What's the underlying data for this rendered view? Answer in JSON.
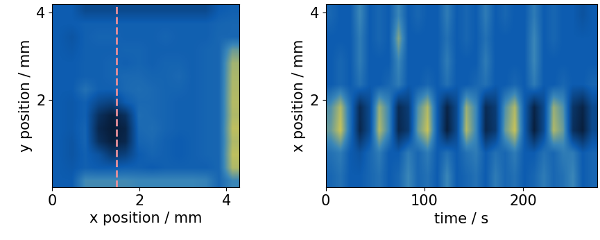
{
  "chart_data": [
    {
      "type": "heatmap",
      "xlabel": "x position / mm",
      "ylabel": "y position / mm",
      "xlim": [
        0,
        4.3
      ],
      "ylim": [
        0,
        4.2
      ],
      "xticks": [
        0,
        2,
        4
      ],
      "yticks": [
        2,
        4
      ],
      "zlim": [
        0,
        1
      ],
      "vline": {
        "x": 1.48,
        "color": "#e8909a",
        "line_style": "dashed"
      },
      "cells": [
        [
          0.4,
          0.4,
          0.62,
          0.62,
          0.62,
          0.62,
          0.6,
          0.6,
          0.6,
          0.6,
          0.6,
          0.58,
          0.45,
          0.6
        ],
        [
          0.4,
          0.38,
          0.42,
          0.4,
          0.4,
          0.42,
          0.42,
          0.4,
          0.42,
          0.42,
          0.42,
          0.42,
          0.45,
          0.85
        ],
        [
          0.4,
          0.36,
          0.42,
          0.35,
          0.2,
          0.25,
          0.4,
          0.44,
          0.42,
          0.4,
          0.42,
          0.44,
          0.45,
          0.88
        ],
        [
          0.4,
          0.36,
          0.44,
          0.15,
          0.05,
          0.1,
          0.44,
          0.46,
          0.42,
          0.4,
          0.42,
          0.44,
          0.45,
          0.85
        ],
        [
          0.4,
          0.38,
          0.44,
          0.1,
          0.03,
          0.08,
          0.46,
          0.48,
          0.44,
          0.42,
          0.42,
          0.44,
          0.45,
          0.88
        ],
        [
          0.4,
          0.38,
          0.42,
          0.15,
          0.05,
          0.15,
          0.48,
          0.46,
          0.44,
          0.42,
          0.42,
          0.44,
          0.45,
          0.85
        ],
        [
          0.4,
          0.38,
          0.42,
          0.3,
          0.25,
          0.4,
          0.46,
          0.46,
          0.44,
          0.42,
          0.42,
          0.44,
          0.45,
          0.86
        ],
        [
          0.4,
          0.4,
          0.5,
          0.42,
          0.42,
          0.46,
          0.48,
          0.46,
          0.44,
          0.44,
          0.42,
          0.44,
          0.45,
          0.85
        ],
        [
          0.4,
          0.4,
          0.42,
          0.42,
          0.44,
          0.46,
          0.46,
          0.44,
          0.44,
          0.46,
          0.42,
          0.44,
          0.45,
          0.84
        ],
        [
          0.4,
          0.4,
          0.42,
          0.42,
          0.44,
          0.42,
          0.44,
          0.42,
          0.44,
          0.44,
          0.42,
          0.44,
          0.45,
          0.82
        ],
        [
          0.4,
          0.38,
          0.42,
          0.42,
          0.42,
          0.44,
          0.44,
          0.42,
          0.42,
          0.42,
          0.42,
          0.44,
          0.45,
          0.7
        ],
        [
          0.4,
          0.36,
          0.42,
          0.44,
          0.44,
          0.42,
          0.42,
          0.42,
          0.44,
          0.42,
          0.42,
          0.42,
          0.45,
          0.45
        ],
        [
          0.4,
          0.4,
          0.42,
          0.42,
          0.42,
          0.42,
          0.42,
          0.42,
          0.42,
          0.42,
          0.42,
          0.42,
          0.44,
          0.45
        ],
        [
          0.4,
          0.4,
          0.3,
          0.3,
          0.3,
          0.3,
          0.3,
          0.3,
          0.3,
          0.3,
          0.3,
          0.3,
          0.4,
          0.42
        ]
      ]
    },
    {
      "type": "heatmap",
      "xlabel": "time / s",
      "ylabel": "x position / mm",
      "xlim": [
        0,
        275
      ],
      "ylim": [
        0,
        4.2
      ],
      "xticks": [
        0,
        100,
        200
      ],
      "yticks": [
        2,
        4
      ],
      "zlim": [
        0,
        1
      ],
      "cells": [
        [
          0.45,
          0.5,
          0.4,
          0.4,
          0.45,
          0.5,
          0.4,
          0.45,
          0.6,
          0.45,
          0.5,
          0.4,
          0.6,
          0.4,
          0.45,
          0.5,
          0.4,
          0.55,
          0.45,
          0.5,
          0.4,
          0.45,
          0.55,
          0.45,
          0.5,
          0.6,
          0.4,
          0.45
        ],
        [
          0.5,
          0.55,
          0.4,
          0.35,
          0.45,
          0.55,
          0.4,
          0.4,
          0.55,
          0.45,
          0.55,
          0.4,
          0.5,
          0.4,
          0.5,
          0.55,
          0.4,
          0.5,
          0.45,
          0.55,
          0.4,
          0.4,
          0.5,
          0.45,
          0.55,
          0.55,
          0.4,
          0.45
        ],
        [
          0.7,
          0.9,
          0.5,
          0.1,
          0.3,
          0.85,
          0.6,
          0.1,
          0.2,
          0.7,
          0.9,
          0.4,
          0.05,
          0.3,
          0.85,
          0.6,
          0.1,
          0.2,
          0.7,
          0.9,
          0.4,
          0.05,
          0.3,
          0.85,
          0.7,
          0.15,
          0.05,
          0.3
        ],
        [
          0.65,
          0.85,
          0.5,
          0.12,
          0.3,
          0.8,
          0.6,
          0.12,
          0.22,
          0.65,
          0.85,
          0.4,
          0.08,
          0.3,
          0.8,
          0.6,
          0.12,
          0.22,
          0.65,
          0.85,
          0.4,
          0.08,
          0.3,
          0.8,
          0.65,
          0.18,
          0.08,
          0.3
        ],
        [
          0.4,
          0.45,
          0.4,
          0.5,
          0.4,
          0.4,
          0.45,
          0.55,
          0.4,
          0.4,
          0.45,
          0.4,
          0.5,
          0.4,
          0.4,
          0.45,
          0.5,
          0.4,
          0.4,
          0.45,
          0.4,
          0.55,
          0.4,
          0.4,
          0.45,
          0.4,
          0.4,
          0.45
        ],
        [
          0.4,
          0.45,
          0.4,
          0.55,
          0.4,
          0.4,
          0.4,
          0.6,
          0.4,
          0.4,
          0.4,
          0.4,
          0.55,
          0.4,
          0.4,
          0.4,
          0.55,
          0.4,
          0.4,
          0.4,
          0.4,
          0.6,
          0.4,
          0.4,
          0.4,
          0.4,
          0.4,
          0.4
        ],
        [
          0.4,
          0.4,
          0.4,
          0.55,
          0.4,
          0.45,
          0.4,
          0.75,
          0.4,
          0.4,
          0.4,
          0.4,
          0.5,
          0.4,
          0.45,
          0.4,
          0.5,
          0.4,
          0.4,
          0.4,
          0.4,
          0.6,
          0.4,
          0.45,
          0.4,
          0.4,
          0.4,
          0.4
        ],
        [
          0.45,
          0.4,
          0.4,
          0.6,
          0.4,
          0.45,
          0.4,
          0.6,
          0.4,
          0.45,
          0.4,
          0.4,
          0.55,
          0.4,
          0.45,
          0.4,
          0.55,
          0.4,
          0.45,
          0.4,
          0.4,
          0.55,
          0.4,
          0.45,
          0.4,
          0.4,
          0.35,
          0.4
        ]
      ]
    }
  ]
}
